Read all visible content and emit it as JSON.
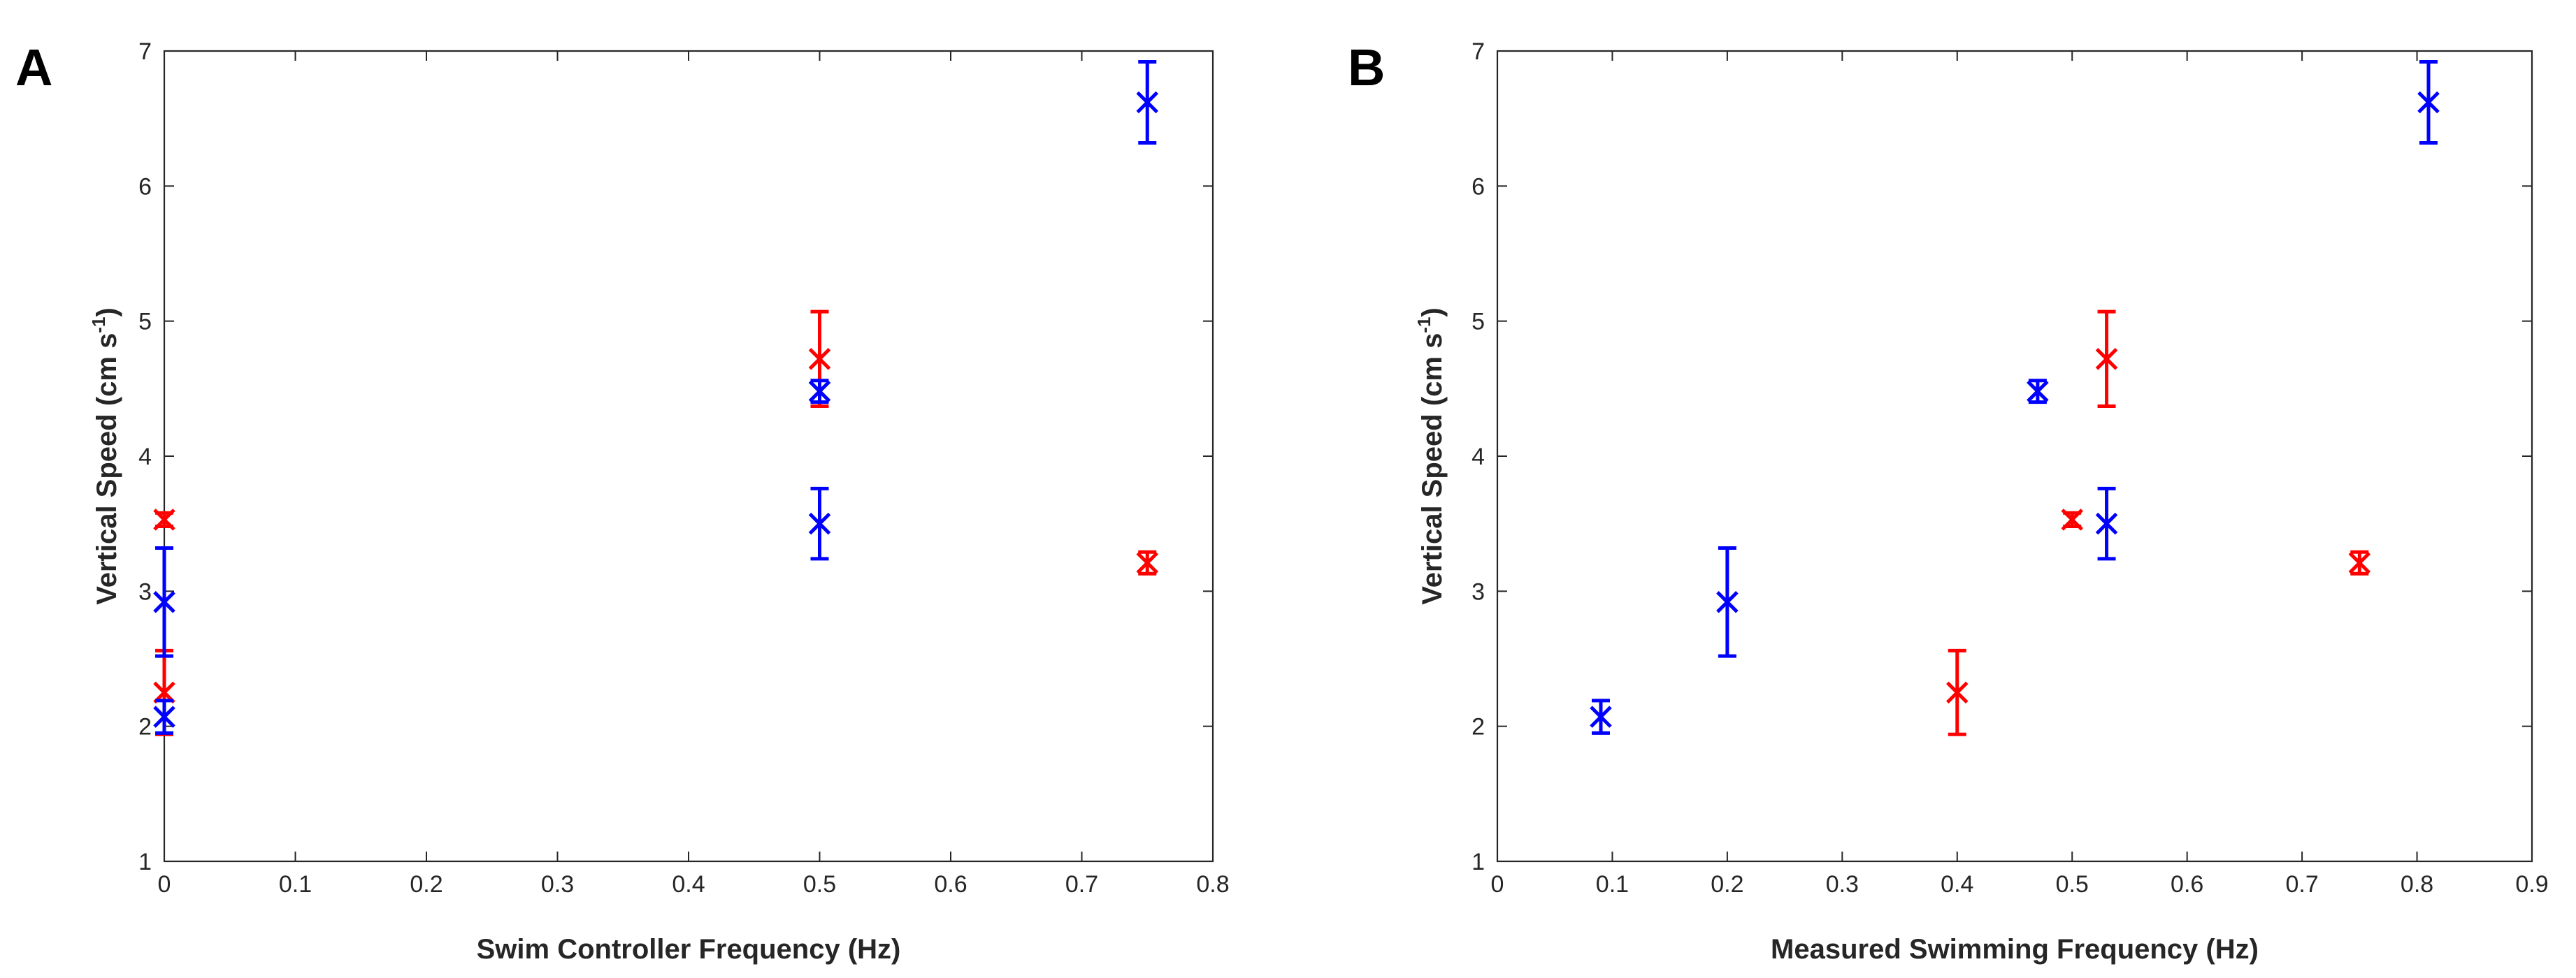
{
  "chart_data": [
    {
      "panel": "A",
      "type": "scatter",
      "xlabel": "Swim Controller Frequency (Hz)",
      "ylabel_main": "Vertical Speed (cm s",
      "ylabel_sup": "-1",
      "ylabel_close": ")",
      "xlim": [
        0,
        0.8
      ],
      "ylim": [
        1,
        7
      ],
      "xticks": [
        "0",
        "0.1",
        "0.2",
        "0.3",
        "0.4",
        "0.5",
        "0.6",
        "0.7",
        "0.8"
      ],
      "yticks": [
        "1",
        "2",
        "3",
        "4",
        "5",
        "6",
        "7"
      ],
      "series": [
        {
          "name": "red",
          "color": "#ff0000",
          "points": [
            {
              "x": 0.0,
              "y": 3.53,
              "err": 0.05
            },
            {
              "x": 0.0,
              "y": 2.25,
              "err": 0.31
            },
            {
              "x": 0.5,
              "y": 4.72,
              "err": 0.35
            },
            {
              "x": 0.75,
              "y": 3.21,
              "err": 0.08
            }
          ]
        },
        {
          "name": "blue",
          "color": "#0000ff",
          "points": [
            {
              "x": 0.0,
              "y": 2.92,
              "err": 0.4
            },
            {
              "x": 0.0,
              "y": 2.07,
              "err": 0.12
            },
            {
              "x": 0.5,
              "y": 4.48,
              "err": 0.08
            },
            {
              "x": 0.5,
              "y": 3.5,
              "err": 0.26
            },
            {
              "x": 0.75,
              "y": 6.62,
              "err": 0.3
            }
          ]
        }
      ]
    },
    {
      "panel": "B",
      "type": "scatter",
      "xlabel": "Measured Swimming Frequency (Hz)",
      "ylabel_main": "Vertical Speed (cm s",
      "ylabel_sup": "-1",
      "ylabel_close": ")",
      "xlim": [
        0,
        0.9
      ],
      "ylim": [
        1,
        7
      ],
      "xticks": [
        "0",
        "0.1",
        "0.2",
        "0.3",
        "0.4",
        "0.5",
        "0.6",
        "0.7",
        "0.8",
        "0.9"
      ],
      "yticks": [
        "1",
        "2",
        "3",
        "4",
        "5",
        "6",
        "7"
      ],
      "series": [
        {
          "name": "red",
          "color": "#ff0000",
          "points": [
            {
              "x": 0.4,
              "y": 2.25,
              "err": 0.31
            },
            {
              "x": 0.5,
              "y": 3.53,
              "err": 0.05
            },
            {
              "x": 0.53,
              "y": 4.72,
              "err": 0.35
            },
            {
              "x": 0.75,
              "y": 3.21,
              "err": 0.08
            }
          ]
        },
        {
          "name": "blue",
          "color": "#0000ff",
          "points": [
            {
              "x": 0.09,
              "y": 2.07,
              "err": 0.12
            },
            {
              "x": 0.2,
              "y": 2.92,
              "err": 0.4
            },
            {
              "x": 0.47,
              "y": 4.48,
              "err": 0.08
            },
            {
              "x": 0.53,
              "y": 3.5,
              "err": 0.26
            },
            {
              "x": 0.81,
              "y": 6.62,
              "err": 0.3
            }
          ]
        }
      ]
    }
  ]
}
